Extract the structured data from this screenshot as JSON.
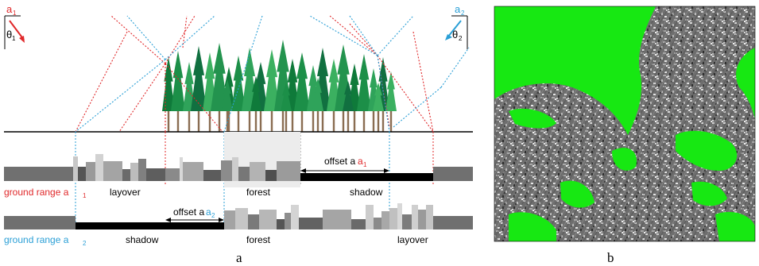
{
  "panel_a": {
    "caption": "a",
    "angle1": {
      "name": "a",
      "sub": "1",
      "theta": "θ",
      "theta_sub": "1",
      "color": "#e0282a"
    },
    "angle2": {
      "name": "a",
      "sub": "2",
      "theta": "θ",
      "theta_sub": "2",
      "color": "#2a9fd6"
    },
    "row1": {
      "axis_label": "ground range a",
      "axis_sub": "1",
      "regions": [
        "layover",
        "forest",
        "shadow"
      ],
      "offset_label": "offset a",
      "offset_sub": "1"
    },
    "row2": {
      "axis_label": "ground range a",
      "axis_sub": "2",
      "regions": [
        "shadow",
        "forest",
        "layover"
      ],
      "offset_label": "offset a",
      "offset_sub": "2"
    }
  },
  "panel_b": {
    "caption": "b",
    "overlay_color": "#17e812"
  }
}
